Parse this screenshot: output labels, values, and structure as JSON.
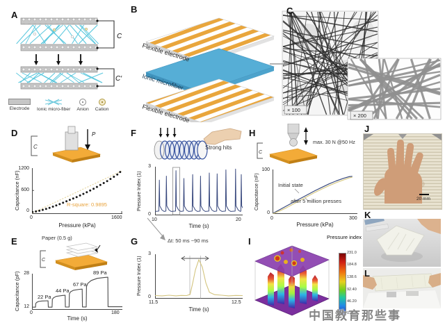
{
  "watermark": {
    "text": "中国教育那些事"
  },
  "colors": {
    "stripe_orange": "#e9a63c",
    "ionic_blue": "#56aed6",
    "pad_orange": "#f3ab38",
    "navy_line": "#39497e",
    "tan_line": "#d3c47e",
    "r_square_orange": "#e8a33d"
  },
  "panels": {
    "A": {
      "label": "A",
      "cap_top": "C",
      "cap_bottom": "C′",
      "legend": [
        "Electrode",
        "Ionic micro-fiber",
        "Anion",
        "Cation"
      ]
    },
    "B": {
      "label": "B",
      "layers": [
        "Flexible electrode",
        "Ionic microfiber",
        "Flexible electrode"
      ]
    },
    "C": {
      "label": "C",
      "mag1": "× 100",
      "mag2": "× 200"
    },
    "D": {
      "label": "D",
      "inset_c": "C",
      "inset_p": "P"
    },
    "E": {
      "label": "E",
      "inset_title": "Paper (0.5 g)",
      "inset_c": "C",
      "steps": [
        "22 Pa",
        "44 Pa",
        "67 Pa",
        "89 Pa"
      ]
    },
    "F": {
      "label": "F",
      "annotation": "Strong hits"
    },
    "G": {
      "label": "G"
    },
    "H": {
      "label": "H",
      "inset_c": "C",
      "inset_note": "max. 30 N @50 Hz"
    },
    "I": {
      "label": "I",
      "colorbar_title": "Pressure index",
      "colorbar_ticks": [
        "231.0",
        "184.8",
        "138.6",
        "92.40",
        "46.20",
        "0.000"
      ]
    },
    "J": {
      "label": "J",
      "scale": "20 mm"
    },
    "K": {
      "label": "K"
    },
    "L": {
      "label": "L"
    }
  },
  "chart_data": [
    {
      "id": "D",
      "type": "scatter",
      "xlabel": "Pressure (kPa)",
      "ylabel": "Capacitance (nF)",
      "xlim": [
        0,
        1600
      ],
      "ylim": [
        -60,
        1230
      ],
      "xtick_labels": [
        "0",
        "1600"
      ],
      "ytick_labels": [
        "1200",
        "600",
        "0"
      ],
      "annotation": "R-square: 0.9895",
      "point_r": 1.5,
      "color": "#1a1a1a",
      "fit_line": {
        "from": [
          0,
          -40
        ],
        "to": [
          1600,
          1160
        ],
        "color": "#e6d6a0"
      },
      "points": [
        [
          10,
          -5
        ],
        [
          70,
          10
        ],
        [
          130,
          30
        ],
        [
          190,
          55
        ],
        [
          250,
          80
        ],
        [
          310,
          110
        ],
        [
          370,
          145
        ],
        [
          430,
          180
        ],
        [
          490,
          215
        ],
        [
          550,
          255
        ],
        [
          610,
          295
        ],
        [
          670,
          335
        ],
        [
          730,
          375
        ],
        [
          790,
          415
        ],
        [
          850,
          460
        ],
        [
          910,
          505
        ],
        [
          970,
          550
        ],
        [
          1030,
          600
        ],
        [
          1090,
          650
        ],
        [
          1150,
          700
        ],
        [
          1210,
          755
        ],
        [
          1270,
          810
        ],
        [
          1330,
          865
        ],
        [
          1390,
          925
        ],
        [
          1450,
          985
        ],
        [
          1510,
          1050
        ],
        [
          1560,
          1120
        ]
      ]
    },
    {
      "id": "E",
      "type": "line",
      "xlabel": "Time (s)",
      "ylabel": "Capacitance (pF)",
      "xlim": [
        0,
        180
      ],
      "ylim": [
        12,
        28.4
      ],
      "xtick_labels": [
        "0",
        "180"
      ],
      "ytick_labels": [
        "28",
        "12"
      ],
      "stroke_width": 1.1,
      "series": [
        {
          "name": "capacitance steps",
          "color": "#4a4a4a",
          "points": [
            [
              0,
              13.2
            ],
            [
              7,
              13.2
            ],
            [
              7.5,
              14.8
            ],
            [
              9,
              15.3
            ],
            [
              13,
              15.8
            ],
            [
              20,
              16.0
            ],
            [
              32,
              16.1
            ],
            [
              32.5,
              13.2
            ],
            [
              40,
              13.2
            ],
            [
              40.5,
              16.8
            ],
            [
              43,
              17.5
            ],
            [
              48,
              18.1
            ],
            [
              60,
              18.5
            ],
            [
              66,
              18.6
            ],
            [
              66.5,
              13.25
            ],
            [
              74,
              13.25
            ],
            [
              74.5,
              19.3
            ],
            [
              77,
              20.2
            ],
            [
              83,
              20.9
            ],
            [
              95,
              21.3
            ],
            [
              100,
              21.4
            ],
            [
              100.5,
              13.3
            ],
            [
              108,
              13.3
            ],
            [
              108.5,
              22.5
            ],
            [
              111,
              24.0
            ],
            [
              118,
              25.3
            ],
            [
              130,
              26.3
            ],
            [
              145,
              26.7
            ],
            [
              151,
              26.8
            ],
            [
              151.5,
              13.4
            ],
            [
              165,
              13.4
            ],
            [
              180,
              13.4
            ]
          ]
        }
      ]
    },
    {
      "id": "F",
      "type": "line",
      "xlabel": "Time (s)",
      "ylabel": "Pressure Index (1)",
      "xlim": [
        10,
        20
      ],
      "ylim": [
        0,
        3.1
      ],
      "xtick_labels": [
        "10",
        "20"
      ],
      "ytick_labels": [
        "3",
        "0"
      ],
      "color": "#39497e",
      "stroke_width": 1,
      "baseline": 0.25,
      "spike_times": [
        10.5,
        11.3,
        12.4,
        13.3,
        14.3,
        15.2,
        16.2,
        17.1,
        18.1,
        19.2,
        19.85
      ],
      "spike_heights": [
        2.25,
        2.5,
        2.85,
        2.35,
        2.6,
        2.5,
        2.7,
        2.65,
        2.9,
        2.95,
        2.6
      ]
    },
    {
      "id": "G",
      "type": "line",
      "xlabel": "Time (s)",
      "ylabel": "Pressure Index (1)",
      "xlim": [
        11.5,
        12.5
      ],
      "ylim": [
        0,
        3.1
      ],
      "xtick_labels": [
        "11.5",
        "12.5"
      ],
      "ytick_labels": [
        "3",
        "0"
      ],
      "annotation": "Δt: 50 ms ~90 ms",
      "color": "#d3c47e",
      "stroke_width": 1.1,
      "points": [
        [
          11.5,
          0.22
        ],
        [
          11.58,
          0.2
        ],
        [
          11.66,
          0.24
        ],
        [
          11.74,
          0.2
        ],
        [
          11.8,
          0.23
        ],
        [
          11.86,
          0.22
        ],
        [
          11.9,
          0.3
        ],
        [
          11.93,
          1.1
        ],
        [
          11.96,
          2.0
        ],
        [
          12.0,
          2.72
        ],
        [
          12.04,
          2.2
        ],
        [
          12.08,
          1.1
        ],
        [
          12.12,
          0.45
        ],
        [
          12.18,
          0.28
        ],
        [
          12.26,
          0.24
        ],
        [
          12.34,
          0.2
        ],
        [
          12.42,
          0.23
        ],
        [
          12.5,
          0.22
        ]
      ]
    },
    {
      "id": "H",
      "type": "line",
      "xlabel": "Pressure (kPa)",
      "ylabel": "Capacitance (nF)",
      "xlim": [
        0,
        300
      ],
      "ylim": [
        0,
        105
      ],
      "xtick_labels": [
        "0",
        "300"
      ],
      "ytick_labels": [
        "100",
        "0"
      ],
      "stroke_width": 1.2,
      "series": [
        {
          "name": "Initial state",
          "color": "#39497e",
          "points": [
            [
              0,
              1
            ],
            [
              25,
              10
            ],
            [
              50,
              19
            ],
            [
              75,
              28
            ],
            [
              100,
              37
            ],
            [
              125,
              46
            ],
            [
              150,
              55
            ],
            [
              175,
              63
            ],
            [
              200,
              71
            ],
            [
              225,
              78
            ],
            [
              250,
              84
            ],
            [
              270,
              88
            ],
            [
              282,
              89
            ]
          ]
        },
        {
          "name": "after 5 million presses",
          "color": "#d8ca84",
          "points": [
            [
              0,
              0
            ],
            [
              25,
              7
            ],
            [
              50,
              15
            ],
            [
              75,
              24
            ],
            [
              100,
              33
            ],
            [
              125,
              42
            ],
            [
              150,
              51
            ],
            [
              175,
              59
            ],
            [
              200,
              67
            ],
            [
              225,
              74
            ],
            [
              250,
              80
            ],
            [
              270,
              85
            ],
            [
              282,
              87
            ]
          ]
        }
      ]
    }
  ]
}
